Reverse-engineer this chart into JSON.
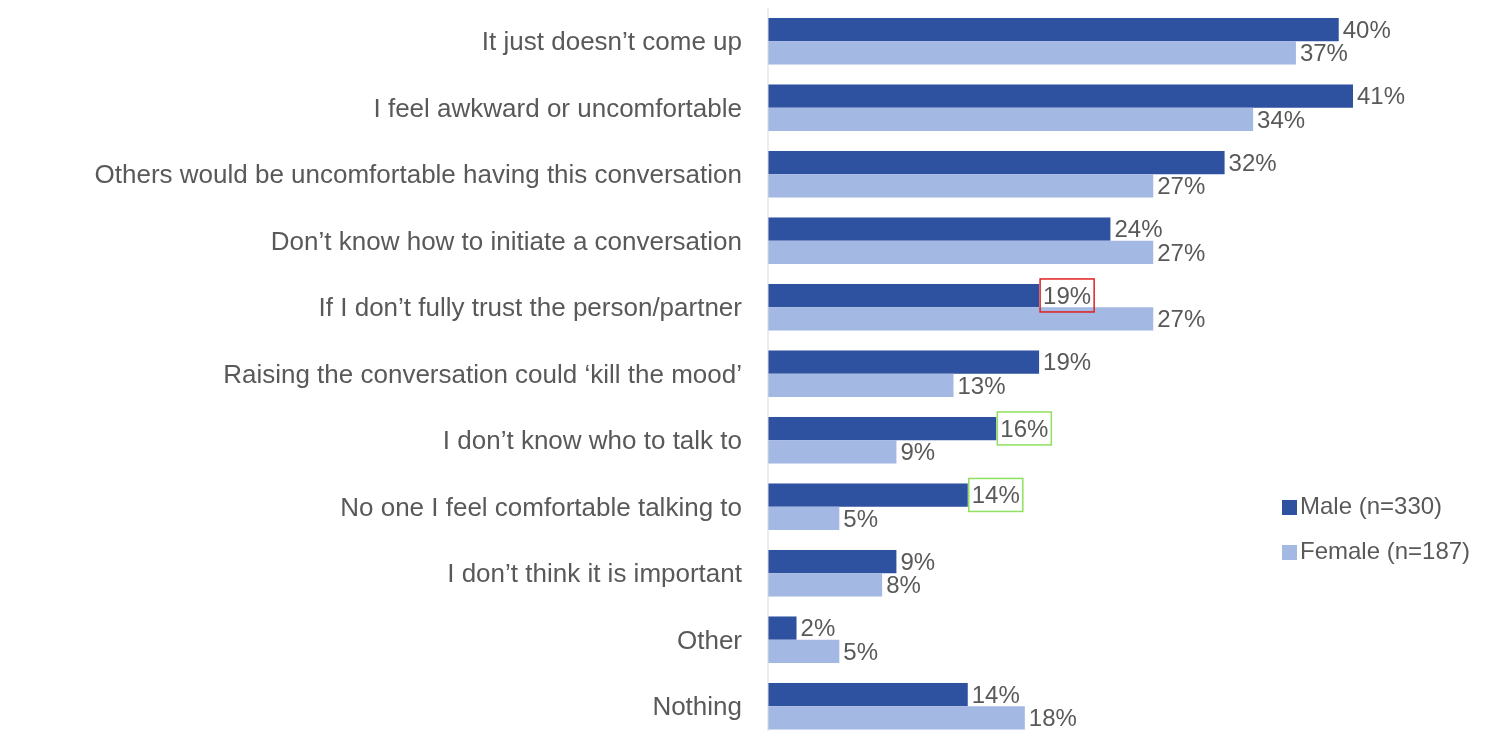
{
  "chart_data": {
    "type": "bar",
    "orientation": "horizontal",
    "legend": "right",
    "categories": [
      "It just doesn’t come up",
      "I feel awkward or uncomfortable",
      "Others would be uncomfortable having this conversation",
      "Don’t know how to initiate a conversation",
      "If I don’t fully trust the person/partner",
      "Raising the conversation could ‘kill the mood’",
      "I don’t know who to talk to",
      "No one I feel comfortable talking to",
      "I don’t think it is important",
      "Other",
      "Nothing"
    ],
    "series": [
      {
        "name": "Male (n=330)",
        "color": "#2f52a0",
        "values": [
          40,
          41,
          32,
          24,
          19,
          19,
          16,
          14,
          9,
          2,
          14
        ],
        "value_labels": [
          "40%",
          "41%",
          "32%",
          "24%",
          "19%",
          "19%",
          "16%",
          "14%",
          "9%",
          "2%",
          "14%"
        ]
      },
      {
        "name": "Female (n=187)",
        "color": "#a3b8e3",
        "values": [
          37,
          34,
          27,
          27,
          27,
          13,
          9,
          5,
          8,
          5,
          18
        ],
        "value_labels": [
          "37%",
          "34%",
          "27%",
          "27%",
          "27%",
          "13%",
          "9%",
          "5%",
          "8%",
          "5%",
          "18%"
        ]
      }
    ]
  }
}
